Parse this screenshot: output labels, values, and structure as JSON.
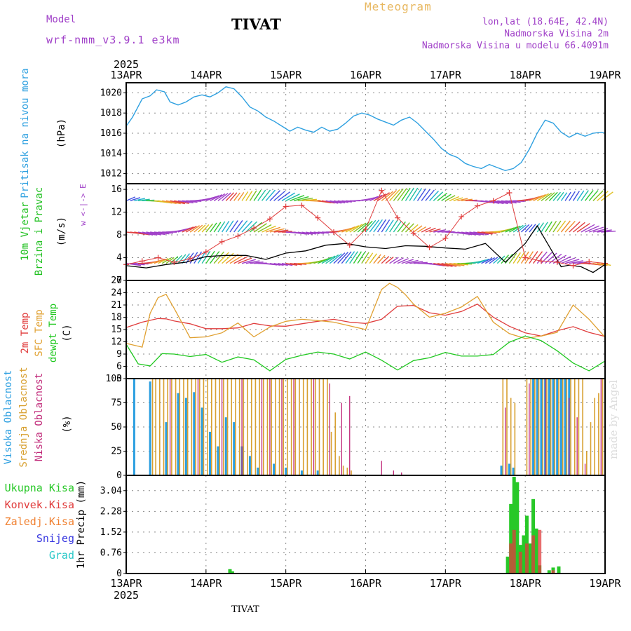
{
  "header": {
    "model_label": "Model",
    "model_run": "wrf-nmm_v3.9.1 e3km",
    "station": "TIVAT",
    "product": "Meteogram",
    "lonlat": "lon,lat (18.64E, 42.4N)",
    "altitude": "Nadmorska Visina 2m",
    "model_altitude": "Nadmorska Visina u modelu 66.4091m"
  },
  "footer": {
    "station": "TIVAT",
    "watermark": "made by Angel"
  },
  "colors": {
    "pressure": "#2ea0e0",
    "wind_label": "#20c020",
    "tmp2": "#e03c3c",
    "sfc": "#e0a030",
    "dew": "#20c820",
    "high": "#2a9ee0",
    "mid": "#d8a030",
    "low": "#c02878",
    "precip_total": "#28c828",
    "precip_conv": "#e03c3c",
    "precip_frz": "#f08030",
    "snow": "#3838e0",
    "hail": "#28c8c8",
    "purple": "#a040c8"
  },
  "chart_data": {
    "type": "meteogram",
    "title": "Meteogram",
    "year": "2025",
    "time_ticks": [
      "13APR",
      "14APR",
      "15APR",
      "16APR",
      "17APR",
      "18APR",
      "19APR"
    ],
    "panels": [
      {
        "key": "pressure",
        "type": "line",
        "ylim": [
          1011,
          1021
        ],
        "yticks": [
          1012,
          1014,
          1016,
          1018,
          1020
        ],
        "ylabel": "Pritisak na nivou mora",
        "unit": "(hPa)",
        "series": [
          {
            "name": "Pritisak na nivou mora",
            "x": [
              0,
              0.08,
              0.2,
              0.3,
              0.38,
              0.48,
              0.55,
              0.65,
              0.75,
              0.85,
              0.95,
              1.05,
              1.15,
              1.25,
              1.35,
              1.45,
              1.55,
              1.65,
              1.75,
              1.85,
              1.95,
              2.05,
              2.15,
              2.25,
              2.35,
              2.45,
              2.55,
              2.65,
              2.75,
              2.85,
              2.95,
              3.05,
              3.15,
              3.25,
              3.35,
              3.45,
              3.55,
              3.65,
              3.75,
              3.85,
              3.95,
              4.05,
              4.15,
              4.25,
              4.35,
              4.45,
              4.55,
              4.65,
              4.75,
              4.85,
              4.95,
              5.05,
              5.15,
              5.25,
              5.35,
              5.45,
              5.55,
              5.65,
              5.75,
              5.85,
              5.95,
              6.0
            ],
            "y": [
              1016.7,
              1017.6,
              1019.4,
              1019.7,
              1020.3,
              1020.1,
              1019.1,
              1018.8,
              1019.1,
              1019.6,
              1019.8,
              1019.6,
              1020.0,
              1020.6,
              1020.4,
              1019.6,
              1018.6,
              1018.2,
              1017.6,
              1017.2,
              1016.7,
              1016.2,
              1016.6,
              1016.3,
              1016.1,
              1016.6,
              1016.2,
              1016.4,
              1017.0,
              1017.7,
              1018.0,
              1017.8,
              1017.4,
              1017.1,
              1016.8,
              1017.3,
              1017.6,
              1017.0,
              1016.2,
              1015.4,
              1014.5,
              1013.9,
              1013.6,
              1013.0,
              1012.7,
              1012.5,
              1012.9,
              1012.6,
              1012.3,
              1012.5,
              1013.1,
              1014.4,
              1016.0,
              1017.3,
              1017.0,
              1016.1,
              1015.6,
              1016.0,
              1015.7,
              1016.0,
              1016.1,
              1016.0
            ]
          }
        ]
      },
      {
        "key": "wind",
        "type": "line",
        "ylim": [
          0,
          17
        ],
        "yticks": [
          0,
          4,
          8,
          12,
          16
        ],
        "ylabel": [
          "10m Vjetar",
          "Brzina i Pravac"
        ],
        "unit": "(m/s)",
        "compass": "w <-|-> E",
        "series": [
          {
            "name": "Brzina",
            "color": "#000000",
            "x": [
              0,
              0.25,
              0.5,
              0.75,
              1.0,
              1.25,
              1.5,
              1.75,
              2.0,
              2.25,
              2.5,
              2.75,
              3.0,
              3.25,
              3.5,
              3.75,
              4.0,
              4.25,
              4.5,
              4.75,
              5.0,
              5.15,
              5.3,
              5.45,
              5.55,
              5.7,
              5.85,
              6.0
            ],
            "y": [
              2.6,
              2.2,
              2.8,
              3.2,
              4.2,
              4.4,
              4.4,
              3.7,
              4.8,
              5.2,
              6.2,
              6.5,
              5.9,
              5.6,
              6.1,
              6.0,
              5.7,
              5.5,
              6.5,
              3.2,
              6.5,
              9.6,
              6.0,
              2.4,
              2.7,
              2.4,
              1.4,
              2.8
            ]
          },
          {
            "name": "Udari",
            "color": "#e03c3c",
            "x": [
              0,
              0.2,
              0.4,
              0.6,
              0.8,
              1.0,
              1.2,
              1.4,
              1.6,
              1.8,
              2.0,
              2.2,
              2.4,
              2.6,
              2.8,
              3.0,
              3.2,
              3.4,
              3.6,
              3.8,
              4.0,
              4.2,
              4.4,
              4.6,
              4.8,
              5.0,
              5.2,
              5.4,
              5.6,
              5.8,
              6.0
            ],
            "y": [
              2.8,
              3.4,
              4.0,
              3.2,
              3.8,
              5.0,
              6.8,
              7.8,
              9.2,
              10.8,
              13.0,
              13.2,
              11.0,
              8.5,
              6.2,
              9.0,
              15.8,
              11.0,
              8.3,
              5.8,
              7.4,
              11.2,
              13.1,
              14.0,
              15.4,
              4.0,
              3.4,
              3.2,
              2.6,
              3.3,
              3.0
            ]
          }
        ]
      },
      {
        "key": "temp",
        "type": "line",
        "ylim": [
          3,
          27
        ],
        "yticks": [
          3,
          6,
          9,
          12,
          15,
          18,
          21,
          24,
          27
        ],
        "ylabels": [
          "2m Temp",
          "SFC Temp",
          "dewpt Temp"
        ],
        "unit": "(C)",
        "series": [
          {
            "name": "2m Temp",
            "x": [
              0,
              0.2,
              0.4,
              0.5,
              0.6,
              0.8,
              1.0,
              1.2,
              1.4,
              1.6,
              1.8,
              2.0,
              2.2,
              2.4,
              2.6,
              2.8,
              3.0,
              3.2,
              3.4,
              3.6,
              3.8,
              4.0,
              4.2,
              4.4,
              4.6,
              4.8,
              5.0,
              5.2,
              5.4,
              5.6,
              5.8,
              6.0
            ],
            "y": [
              15.5,
              16.8,
              17.7,
              17.6,
              17.1,
              16.4,
              15.2,
              15.2,
              15.4,
              16.5,
              15.9,
              15.8,
              16.4,
              17.0,
              17.5,
              16.8,
              16.5,
              17.5,
              20.7,
              20.9,
              19.1,
              18.5,
              19.4,
              21.2,
              18.0,
              15.8,
              14.2,
              13.4,
              14.7,
              15.7,
              14.3,
              13.3
            ]
          },
          {
            "name": "SFC Temp",
            "x": [
              0,
              0.2,
              0.3,
              0.4,
              0.5,
              0.6,
              0.8,
              1.0,
              1.2,
              1.4,
              1.6,
              1.8,
              2.0,
              2.2,
              2.4,
              2.6,
              2.8,
              3.0,
              3.2,
              3.3,
              3.4,
              3.5,
              3.6,
              3.8,
              4.0,
              4.2,
              4.4,
              4.6,
              4.8,
              5.0,
              5.2,
              5.4,
              5.6,
              5.8,
              6.0
            ],
            "y": [
              11.6,
              10.7,
              19.0,
              22.8,
              23.6,
              20.2,
              13.0,
              13.2,
              14.2,
              16.6,
              13.2,
              15.6,
              17.0,
              17.5,
              17.2,
              16.8,
              15.9,
              15.0,
              24.8,
              26.3,
              25.3,
              23.5,
              21.2,
              18.0,
              19.0,
              20.5,
              23.1,
              16.8,
              14.0,
              12.8,
              13.4,
              14.3,
              21.0,
              17.5,
              13.1
            ]
          },
          {
            "name": "dewpt Temp",
            "x": [
              0,
              0.15,
              0.3,
              0.45,
              0.6,
              0.8,
              1.0,
              1.2,
              1.4,
              1.6,
              1.8,
              2.0,
              2.2,
              2.4,
              2.6,
              2.8,
              3.0,
              3.2,
              3.4,
              3.6,
              3.8,
              4.0,
              4.2,
              4.4,
              4.6,
              4.8,
              5.0,
              5.2,
              5.4,
              5.6,
              5.8,
              6.0
            ],
            "y": [
              11.4,
              6.6,
              6.1,
              9.1,
              9.0,
              8.4,
              8.9,
              7.0,
              8.3,
              7.6,
              4.9,
              7.7,
              8.7,
              9.5,
              9.0,
              7.8,
              9.5,
              7.5,
              5.1,
              7.4,
              8.1,
              9.4,
              8.5,
              8.5,
              8.9,
              11.9,
              13.4,
              12.3,
              9.8,
              6.8,
              4.9,
              7.3
            ]
          }
        ]
      },
      {
        "key": "cloud",
        "type": "bar",
        "ylim": [
          0,
          100
        ],
        "yticks": [
          0,
          25,
          50,
          75,
          100
        ],
        "ylabels": [
          "Visoka Oblacnost",
          "Srednja Oblacnost",
          "Niska Oblacnost"
        ],
        "unit": "(%)",
        "series": [
          {
            "name": "Visoka Oblacnost",
            "x": [
              0.1,
              0.3,
              0.5,
              0.65,
              0.75,
              0.85,
              0.95,
              1.05,
              1.15,
              1.25,
              1.35,
              1.45,
              1.55,
              1.65,
              1.85,
              2.0,
              2.2,
              2.4,
              4.7,
              4.8,
              4.85,
              5.1,
              5.15,
              5.2,
              5.25,
              5.3,
              5.35,
              5.4,
              5.45,
              5.5,
              5.55
            ],
            "y": [
              100,
              97,
              55,
              85,
              80,
              86,
              70,
              45,
              30,
              60,
              55,
              30,
              20,
              8,
              12,
              8,
              5,
              5,
              10,
              12,
              8,
              100,
              100,
              100,
              100,
              100,
              100,
              100,
              100,
              100,
              100
            ]
          },
          {
            "name": "Srednja Oblacnost",
            "x": [
              0.33,
              0.37,
              0.42,
              0.47,
              0.52,
              0.57,
              0.62,
              0.67,
              0.72,
              0.77,
              0.82,
              0.87,
              0.92,
              0.97,
              1.02,
              1.07,
              1.12,
              1.17,
              1.22,
              1.27,
              1.32,
              1.37,
              1.42,
              1.47,
              1.52,
              1.57,
              1.62,
              1.67,
              1.72,
              1.77,
              1.82,
              1.87,
              1.92,
              1.97,
              2.02,
              2.07,
              2.12,
              2.17,
              2.22,
              2.27,
              2.32,
              2.37,
              2.42,
              2.47,
              2.52,
              2.57,
              2.62,
              2.67,
              2.72,
              2.77,
              2.82,
              4.72,
              4.77,
              4.82,
              4.87,
              5.02,
              5.07,
              5.12,
              5.17,
              5.22,
              5.27,
              5.32,
              5.37,
              5.42,
              5.47,
              5.52,
              5.57,
              5.62,
              5.67,
              5.72,
              5.77,
              5.82,
              5.87,
              5.92,
              5.97
            ],
            "y": [
              100,
              100,
              100,
              100,
              100,
              100,
              100,
              100,
              100,
              100,
              100,
              100,
              100,
              100,
              100,
              100,
              100,
              100,
              100,
              100,
              100,
              100,
              100,
              100,
              100,
              100,
              100,
              100,
              100,
              100,
              100,
              100,
              100,
              100,
              100,
              100,
              100,
              100,
              100,
              100,
              100,
              100,
              100,
              100,
              100,
              45,
              65,
              20,
              10,
              8,
              5,
              100,
              100,
              80,
              75,
              100,
              100,
              100,
              100,
              100,
              100,
              100,
              100,
              100,
              100,
              100,
              100,
              100,
              100,
              100,
              25,
              55,
              80,
              85,
              100
            ]
          },
          {
            "name": "Niska Oblacnost",
            "x": [
              0.55,
              0.9,
              1.2,
              1.45,
              1.7,
              1.8,
              1.95,
              2.1,
              2.35,
              2.55,
              2.7,
              2.8,
              3.2,
              3.35,
              3.45,
              4.75,
              5.05,
              5.25,
              5.55,
              5.65,
              5.75,
              5.95
            ],
            "y": [
              100,
              100,
              100,
              100,
              100,
              100,
              100,
              100,
              100,
              95,
              75,
              82,
              15,
              5,
              3,
              70,
              95,
              100,
              80,
              60,
              12,
              100
            ]
          }
        ]
      },
      {
        "key": "precip",
        "type": "bar",
        "ylim": [
          0,
          3.6
        ],
        "yticks": [
          0,
          0.76,
          1.52,
          2.28,
          3.04
        ],
        "ylabel": "1hr Precip (mm)",
        "legend": [
          "Ukupna Kisa",
          "Konvek.Kisa",
          "Zaledj.Kisa",
          "Snijeg",
          "Grad"
        ],
        "series": [
          {
            "name": "Ukupna Kisa",
            "x": [
              1.3,
              1.33,
              4.78,
              4.82,
              4.86,
              4.9,
              4.94,
              4.98,
              5.02,
              5.06,
              5.1,
              5.14,
              5.18,
              5.3,
              5.35,
              5.42
            ],
            "y": [
              0.16,
              0.08,
              0.62,
              2.55,
              3.55,
              3.35,
              1.05,
              1.4,
              2.12,
              1.1,
              2.73,
              1.65,
              0.3,
              0.12,
              0.22,
              0.26
            ]
          },
          {
            "name": "Konvek.Kisa",
            "x": [
              4.82,
              4.86,
              4.94,
              5.02,
              5.1,
              5.18,
              5.35
            ],
            "y": [
              1.1,
              1.6,
              0.8,
              1.1,
              1.4,
              1.6,
              0.12
            ]
          }
        ]
      }
    ]
  }
}
